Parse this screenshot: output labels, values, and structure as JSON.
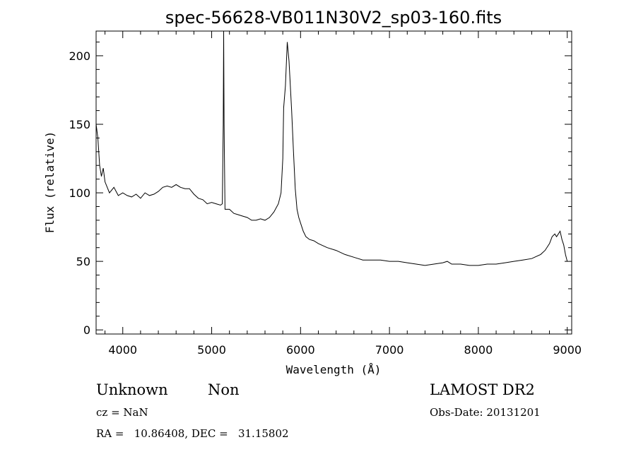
{
  "chart_data": {
    "type": "line",
    "title": "spec-56628-VB011N30V2_sp03-160.fits",
    "xlabel": "Wavelength (Å)",
    "ylabel": "Flux (relative)",
    "xlim": [
      3700,
      9050
    ],
    "ylim": [
      -3,
      218
    ],
    "x_ticks": [
      4000,
      5000,
      6000,
      7000,
      8000,
      9000
    ],
    "y_ticks": [
      0,
      50,
      100,
      150,
      200
    ],
    "grid": false,
    "line_color": "#000000",
    "series": [
      {
        "points": [
          [
            3700,
            150
          ],
          [
            3720,
            140
          ],
          [
            3740,
            120
          ],
          [
            3760,
            112
          ],
          [
            3780,
            118
          ],
          [
            3800,
            108
          ],
          [
            3850,
            100
          ],
          [
            3900,
            104
          ],
          [
            3950,
            98
          ],
          [
            4000,
            100
          ],
          [
            4050,
            98
          ],
          [
            4100,
            97
          ],
          [
            4150,
            99
          ],
          [
            4200,
            96
          ],
          [
            4250,
            100
          ],
          [
            4300,
            98
          ],
          [
            4350,
            99
          ],
          [
            4400,
            101
          ],
          [
            4450,
            104
          ],
          [
            4500,
            105
          ],
          [
            4550,
            104
          ],
          [
            4600,
            106
          ],
          [
            4650,
            104
          ],
          [
            4700,
            103
          ],
          [
            4750,
            103
          ],
          [
            4800,
            99
          ],
          [
            4850,
            96
          ],
          [
            4900,
            95
          ],
          [
            4950,
            92
          ],
          [
            5000,
            93
          ],
          [
            5050,
            92
          ],
          [
            5100,
            91
          ],
          [
            5120,
            92
          ],
          [
            5130,
            150
          ],
          [
            5135,
            218
          ],
          [
            5140,
            150
          ],
          [
            5150,
            88
          ],
          [
            5200,
            88
          ],
          [
            5250,
            85
          ],
          [
            5300,
            84
          ],
          [
            5350,
            83
          ],
          [
            5400,
            82
          ],
          [
            5450,
            80
          ],
          [
            5500,
            80
          ],
          [
            5550,
            81
          ],
          [
            5600,
            80
          ],
          [
            5650,
            82
          ],
          [
            5700,
            86
          ],
          [
            5750,
            92
          ],
          [
            5780,
            100
          ],
          [
            5800,
            125
          ],
          [
            5810,
            162
          ],
          [
            5830,
            178
          ],
          [
            5850,
            210
          ],
          [
            5870,
            196
          ],
          [
            5900,
            160
          ],
          [
            5920,
            130
          ],
          [
            5940,
            103
          ],
          [
            5960,
            88
          ],
          [
            5980,
            82
          ],
          [
            6000,
            78
          ],
          [
            6030,
            72
          ],
          [
            6060,
            68
          ],
          [
            6100,
            66
          ],
          [
            6150,
            65
          ],
          [
            6200,
            63
          ],
          [
            6300,
            60
          ],
          [
            6400,
            58
          ],
          [
            6500,
            55
          ],
          [
            6600,
            53
          ],
          [
            6700,
            51
          ],
          [
            6800,
            51
          ],
          [
            6900,
            51
          ],
          [
            7000,
            50
          ],
          [
            7100,
            50
          ],
          [
            7200,
            49
          ],
          [
            7300,
            48
          ],
          [
            7400,
            47
          ],
          [
            7500,
            48
          ],
          [
            7600,
            49
          ],
          [
            7650,
            50
          ],
          [
            7700,
            48
          ],
          [
            7800,
            48
          ],
          [
            7900,
            47
          ],
          [
            8000,
            47
          ],
          [
            8100,
            48
          ],
          [
            8200,
            48
          ],
          [
            8300,
            49
          ],
          [
            8400,
            50
          ],
          [
            8500,
            51
          ],
          [
            8600,
            52
          ],
          [
            8700,
            55
          ],
          [
            8750,
            58
          ],
          [
            8800,
            63
          ],
          [
            8830,
            68
          ],
          [
            8860,
            70
          ],
          [
            8880,
            68
          ],
          [
            8900,
            70
          ],
          [
            8920,
            72
          ],
          [
            8940,
            66
          ],
          [
            8960,
            62
          ],
          [
            8980,
            55
          ],
          [
            9000,
            50
          ]
        ]
      }
    ]
  },
  "info": {
    "object_type": "Unknown",
    "subclass": "Non",
    "survey": "LAMOST DR2",
    "redshift": "cz = NaN",
    "obs_date": "Obs-Date: 20131201",
    "coords": "RA =   10.86408, DEC =   31.15802"
  }
}
